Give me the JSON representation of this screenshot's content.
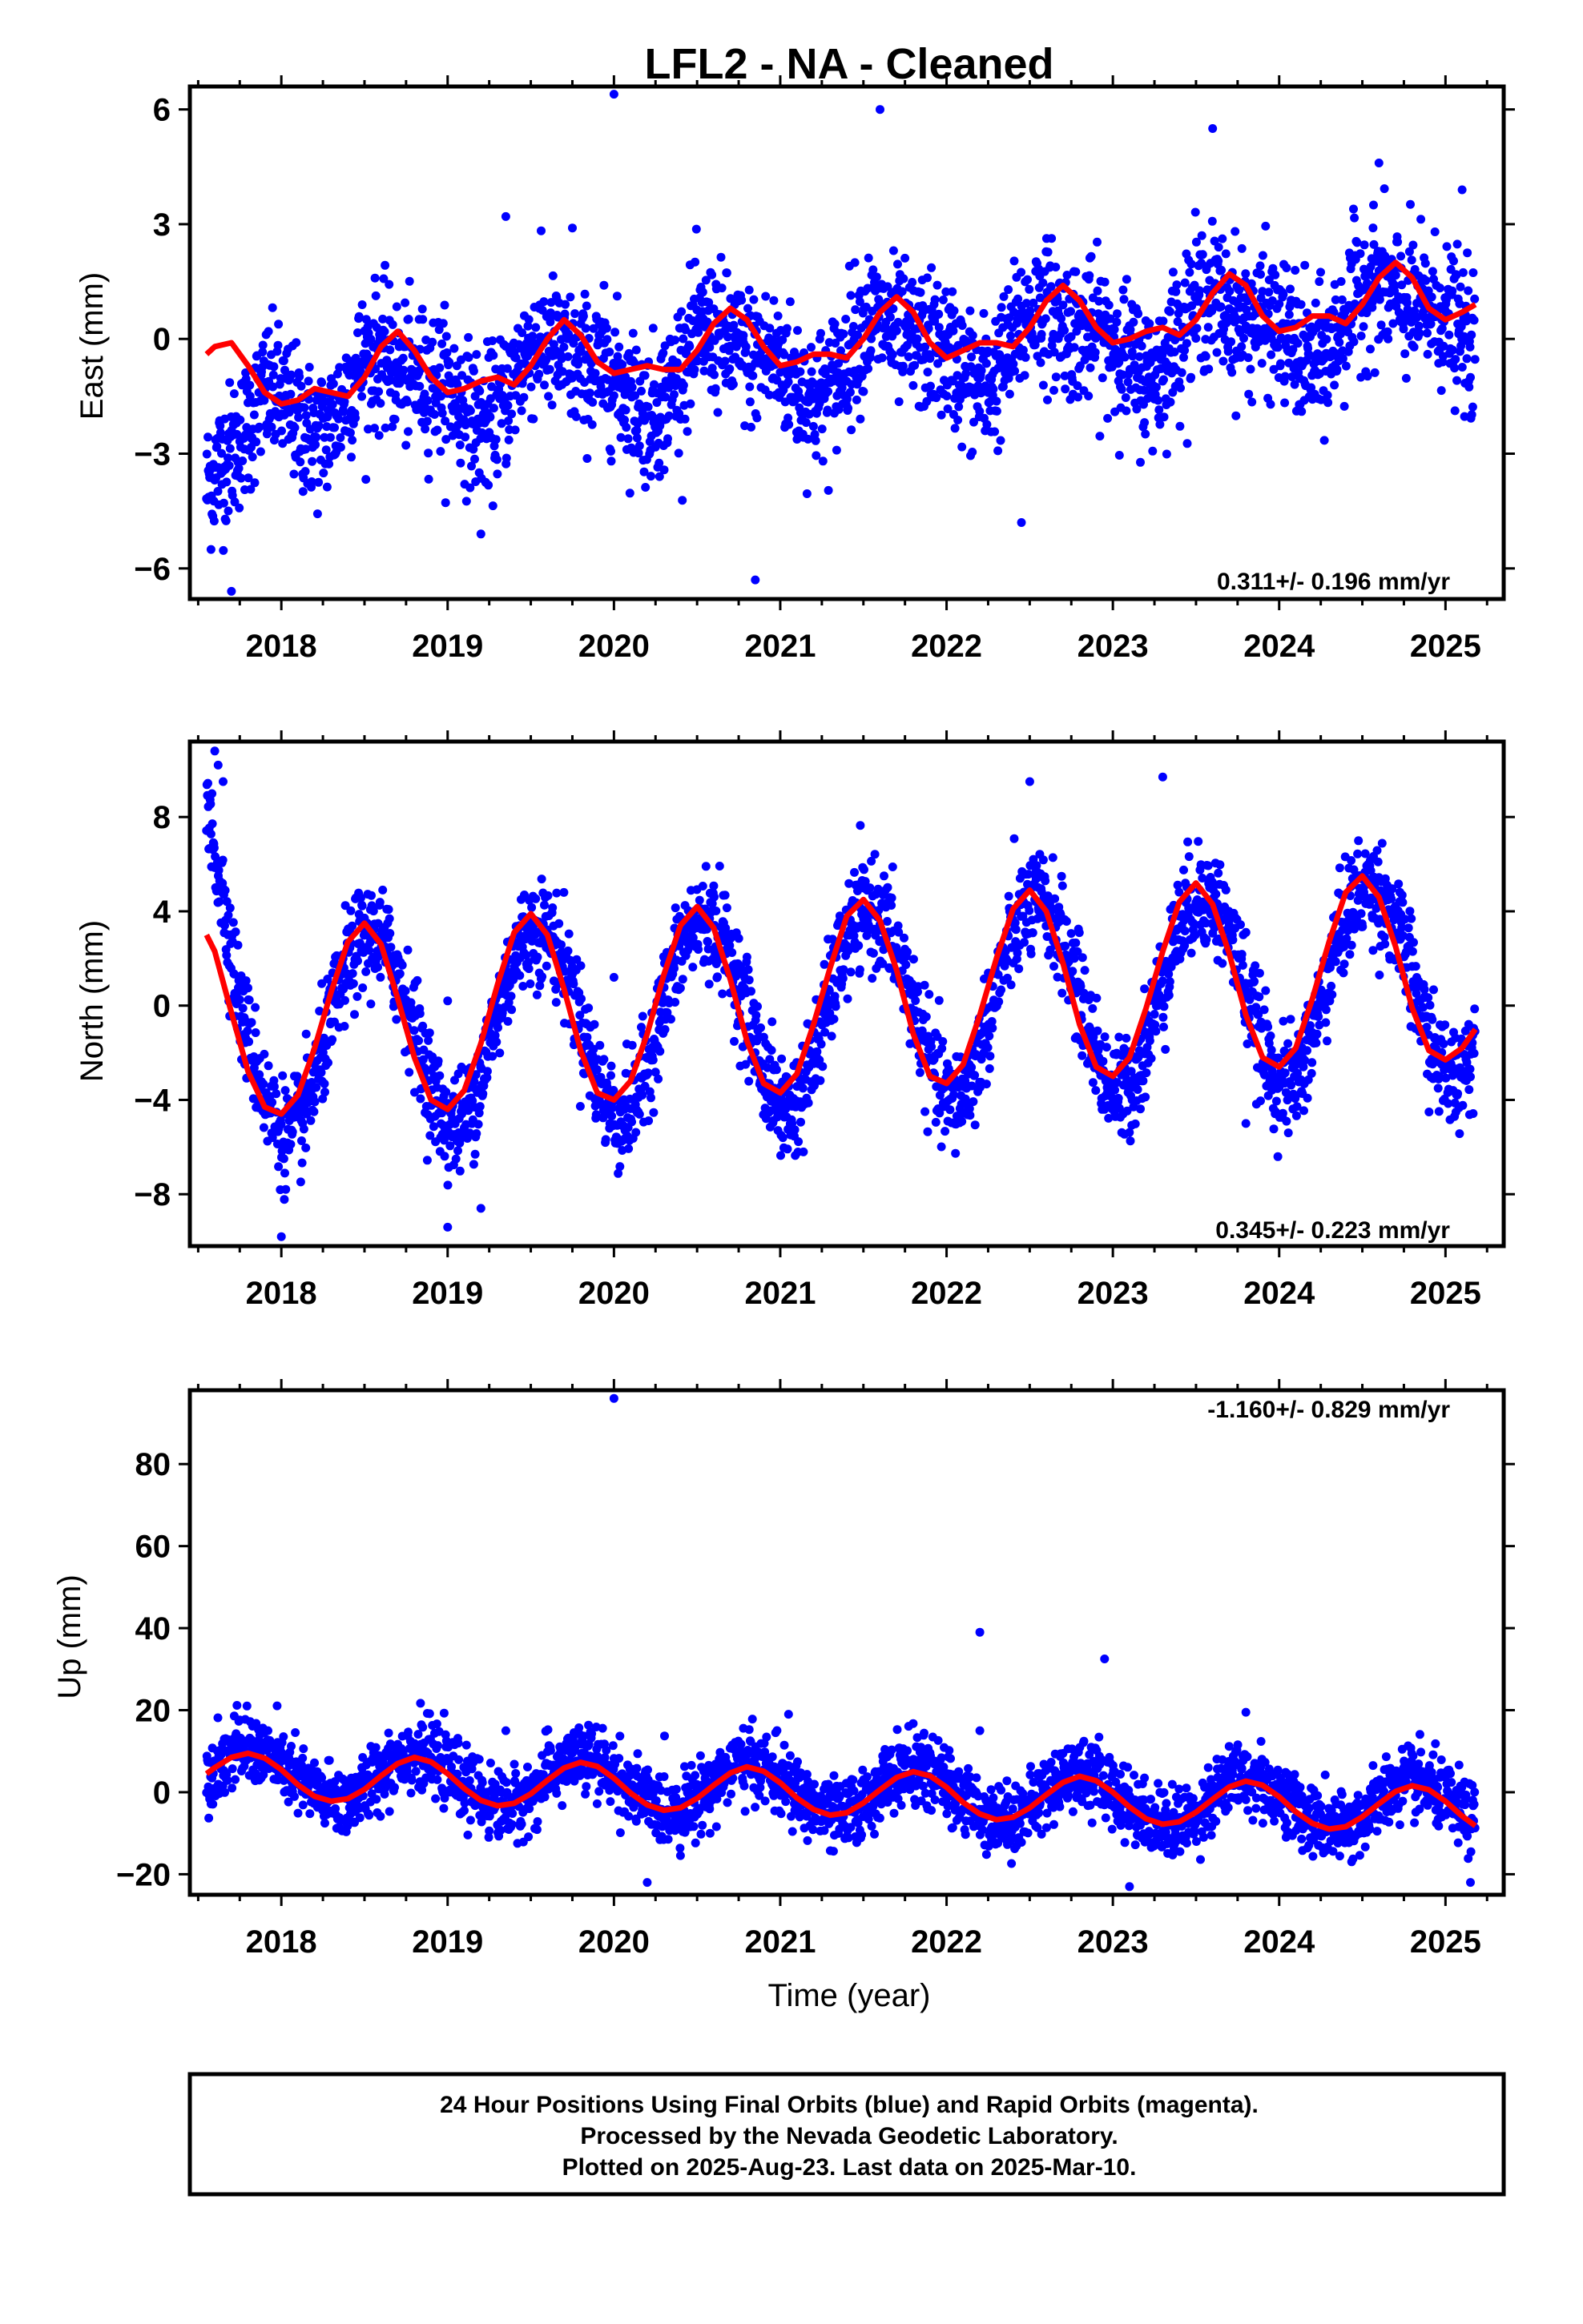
{
  "title": "LFL2  - NA - Cleaned",
  "xlabel": "Time (year)",
  "colors": {
    "points": "#0000ff",
    "fit": "#ff0000",
    "frame": "#000000"
  },
  "chart_data": [
    {
      "type": "scatter",
      "name": "east",
      "ylabel": "East (mm)",
      "rate": "0.311+/- 0.196 mm/yr",
      "xlim": [
        2017.45,
        2025.35
      ],
      "ylim": [
        -6.8,
        6.6
      ],
      "yticks": [
        -6,
        -3,
        0,
        3,
        6
      ],
      "ytick_labels": [
        "−6",
        "−3",
        "0",
        "3",
        "6"
      ],
      "xticks": [
        2018,
        2019,
        2020,
        2021,
        2022,
        2023,
        2024,
        2025
      ],
      "xtick_labels": [
        "2018",
        "2019",
        "2020",
        "2021",
        "2022",
        "2023",
        "2024",
        "2025"
      ],
      "trend": {
        "intercept": -0.45,
        "slope": 0.311,
        "ref": 2021.4
      },
      "annual": {
        "amplitude": 0.8,
        "phase": 0.66
      },
      "semiannual": {
        "amplitude": 0.35,
        "phase": 0.5
      },
      "noise": 0.9,
      "fit_x": [
        2017.55,
        2017.6,
        2017.7,
        2017.8,
        2017.9,
        2018.0,
        2018.1,
        2018.2,
        2018.3,
        2018.4,
        2018.5,
        2018.6,
        2018.7,
        2018.8,
        2018.9,
        2019.0,
        2019.1,
        2019.2,
        2019.3,
        2019.4,
        2019.5,
        2019.6,
        2019.7,
        2019.8,
        2019.9,
        2020.0,
        2020.1,
        2020.2,
        2020.3,
        2020.4,
        2020.5,
        2020.6,
        2020.7,
        2020.8,
        2020.9,
        2021.0,
        2021.1,
        2021.2,
        2021.3,
        2021.4,
        2021.5,
        2021.6,
        2021.7,
        2021.8,
        2021.9,
        2022.0,
        2022.1,
        2022.2,
        2022.3,
        2022.4,
        2022.5,
        2022.6,
        2022.7,
        2022.8,
        2022.9,
        2023.0,
        2023.1,
        2023.2,
        2023.3,
        2023.4,
        2023.5,
        2023.6,
        2023.7,
        2023.8,
        2023.9,
        2024.0,
        2024.1,
        2024.2,
        2024.3,
        2024.4,
        2024.5,
        2024.6,
        2024.7,
        2024.8,
        2024.9,
        2025.0,
        2025.1,
        2025.18
      ],
      "fit_y": [
        -0.4,
        -0.2,
        -0.1,
        -0.7,
        -1.4,
        -1.7,
        -1.6,
        -1.3,
        -1.4,
        -1.5,
        -1.0,
        -0.2,
        0.2,
        -0.3,
        -1.0,
        -1.4,
        -1.3,
        -1.1,
        -1.0,
        -1.2,
        -0.7,
        0.0,
        0.5,
        0.1,
        -0.6,
        -0.9,
        -0.8,
        -0.7,
        -0.8,
        -0.8,
        -0.3,
        0.4,
        0.8,
        0.5,
        -0.2,
        -0.7,
        -0.6,
        -0.4,
        -0.4,
        -0.5,
        0.0,
        0.7,
        1.1,
        0.7,
        -0.1,
        -0.5,
        -0.3,
        -0.1,
        -0.1,
        -0.2,
        0.3,
        1.0,
        1.4,
        1.0,
        0.3,
        -0.1,
        -0.0,
        0.2,
        0.3,
        0.1,
        0.5,
        1.2,
        1.7,
        1.4,
        0.6,
        0.2,
        0.3,
        0.6,
        0.6,
        0.4,
        0.9,
        1.6,
        2.0,
        1.6,
        0.8,
        0.5,
        0.7,
        0.9
      ],
      "outliers": [
        [
          2020.0,
          6.4
        ],
        [
          2021.6,
          6.0
        ],
        [
          2020.85,
          -6.3
        ],
        [
          2017.7,
          -6.6
        ],
        [
          2023.6,
          5.5
        ],
        [
          2024.6,
          4.6
        ],
        [
          2025.1,
          3.9
        ],
        [
          2019.35,
          3.2
        ],
        [
          2019.75,
          2.9
        ],
        [
          2022.45,
          -4.8
        ],
        [
          2019.2,
          -5.1
        ]
      ]
    },
    {
      "type": "scatter",
      "name": "north",
      "ylabel": "North (mm)",
      "rate": "0.345+/- 0.223 mm/yr",
      "xlim": [
        2017.45,
        2025.35
      ],
      "ylim": [
        -10.2,
        11.2
      ],
      "yticks": [
        -8,
        -4,
        0,
        4,
        8
      ],
      "ytick_labels": [
        "−8",
        "−4",
        "0",
        "4",
        "8"
      ],
      "xticks": [
        2018,
        2019,
        2020,
        2021,
        2022,
        2023,
        2024,
        2025
      ],
      "xtick_labels": [
        "2018",
        "2019",
        "2020",
        "2021",
        "2022",
        "2023",
        "2024",
        "2025"
      ],
      "trend": {
        "intercept": 0.0,
        "slope": 0.345,
        "ref": 2021.4
      },
      "annual": {
        "amplitude": 4.1,
        "phase": 0.54
      },
      "semiannual": {
        "amplitude": 0.2,
        "phase": 0.3
      },
      "noise": 1.1,
      "fit_x": [
        2017.55,
        2017.6,
        2017.7,
        2017.8,
        2017.9,
        2018.0,
        2018.1,
        2018.2,
        2018.3,
        2018.4,
        2018.5,
        2018.6,
        2018.7,
        2018.8,
        2018.9,
        2019.0,
        2019.1,
        2019.2,
        2019.3,
        2019.4,
        2019.5,
        2019.6,
        2019.7,
        2019.8,
        2019.9,
        2020.0,
        2020.1,
        2020.2,
        2020.3,
        2020.4,
        2020.5,
        2020.6,
        2020.7,
        2020.8,
        2020.9,
        2021.0,
        2021.1,
        2021.2,
        2021.3,
        2021.4,
        2021.5,
        2021.6,
        2021.7,
        2021.8,
        2021.9,
        2022.0,
        2022.1,
        2022.2,
        2022.3,
        2022.4,
        2022.5,
        2022.6,
        2022.7,
        2022.8,
        2022.9,
        2023.0,
        2023.1,
        2023.2,
        2023.3,
        2023.4,
        2023.5,
        2023.6,
        2023.7,
        2023.8,
        2023.9,
        2024.0,
        2024.1,
        2024.2,
        2024.3,
        2024.4,
        2024.5,
        2024.6,
        2024.7,
        2024.8,
        2024.9,
        2025.0,
        2025.1,
        2025.18
      ],
      "fit_y": [
        3.0,
        2.3,
        -0.3,
        -2.8,
        -4.3,
        -4.6,
        -3.8,
        -1.8,
        0.6,
        2.7,
        3.5,
        2.6,
        0.3,
        -2.2,
        -4.0,
        -4.4,
        -3.6,
        -1.6,
        0.9,
        3.1,
        3.9,
        3.0,
        0.7,
        -1.9,
        -3.7,
        -4.0,
        -3.2,
        -1.2,
        1.3,
        3.4,
        4.2,
        3.3,
        1.1,
        -1.5,
        -3.3,
        -3.7,
        -2.9,
        -0.8,
        1.6,
        3.8,
        4.5,
        3.6,
        1.5,
        -1.2,
        -3.0,
        -3.3,
        -2.5,
        -0.4,
        2.0,
        4.1,
        4.9,
        4.0,
        1.8,
        -0.8,
        -2.6,
        -3.0,
        -2.2,
        -0.1,
        2.3,
        4.4,
        5.2,
        4.3,
        2.2,
        -0.4,
        -2.2,
        -2.6,
        -1.8,
        0.3,
        2.7,
        4.8,
        5.5,
        4.6,
        2.5,
        -0.1,
        -1.9,
        -2.3,
        -1.8,
        -1.0
      ],
      "outliers": [
        [
          2017.6,
          10.8
        ],
        [
          2017.62,
          10.2
        ],
        [
          2017.65,
          9.5
        ],
        [
          2018.0,
          -9.8
        ],
        [
          2019.0,
          -9.4
        ],
        [
          2019.2,
          -8.6
        ],
        [
          2023.3,
          9.7
        ],
        [
          2022.5,
          9.5
        ],
        [
          2020.0,
          1.2
        ],
        [
          2019.0,
          0.2
        ],
        [
          2023.8,
          -5.0
        ]
      ]
    },
    {
      "type": "scatter",
      "name": "up",
      "ylabel": "Up (mm)",
      "rate": "-1.160+/- 0.829 mm/yr",
      "xlim": [
        2017.45,
        2025.35
      ],
      "ylim": [
        -25,
        98
      ],
      "yticks": [
        -20,
        0,
        20,
        40,
        60,
        80
      ],
      "ytick_labels": [
        "−20",
        "0",
        "20",
        "40",
        "60",
        "80"
      ],
      "xticks": [
        2018,
        2019,
        2020,
        2021,
        2022,
        2023,
        2024,
        2025
      ],
      "xtick_labels": [
        "2018",
        "2019",
        "2020",
        "2021",
        "2022",
        "2023",
        "2024",
        "2025"
      ],
      "trend": {
        "intercept": 0.3,
        "slope": -1.16,
        "ref": 2021.4
      },
      "annual": {
        "amplitude": 6.0,
        "phase": 0.82
      },
      "semiannual": {
        "amplitude": 0.5,
        "phase": 0.2
      },
      "noise": 4.2,
      "fit_x": [
        2017.55,
        2017.6,
        2017.7,
        2017.8,
        2017.9,
        2018.0,
        2018.1,
        2018.2,
        2018.3,
        2018.4,
        2018.5,
        2018.6,
        2018.7,
        2018.8,
        2018.9,
        2019.0,
        2019.1,
        2019.2,
        2019.3,
        2019.4,
        2019.5,
        2019.6,
        2019.7,
        2019.8,
        2019.9,
        2020.0,
        2020.1,
        2020.2,
        2020.3,
        2020.4,
        2020.5,
        2020.6,
        2020.7,
        2020.8,
        2020.9,
        2021.0,
        2021.1,
        2021.2,
        2021.3,
        2021.4,
        2021.5,
        2021.6,
        2021.7,
        2021.8,
        2021.9,
        2022.0,
        2022.1,
        2022.2,
        2022.3,
        2022.4,
        2022.5,
        2022.6,
        2022.7,
        2022.8,
        2022.9,
        2023.0,
        2023.1,
        2023.2,
        2023.3,
        2023.4,
        2023.5,
        2023.6,
        2023.7,
        2023.8,
        2023.9,
        2024.0,
        2024.1,
        2024.2,
        2024.3,
        2024.4,
        2024.5,
        2024.6,
        2024.7,
        2024.8,
        2024.9,
        2025.0,
        2025.1,
        2025.18
      ],
      "fit_y": [
        4.5,
        6.0,
        8.5,
        9.5,
        8.3,
        5.5,
        1.8,
        -1.0,
        -2.2,
        -1.6,
        0.7,
        4.0,
        7.0,
        8.5,
        7.4,
        4.5,
        0.9,
        -2.0,
        -3.3,
        -2.7,
        -0.4,
        2.9,
        5.9,
        7.3,
        6.3,
        3.4,
        -0.2,
        -3.1,
        -4.4,
        -3.8,
        -1.5,
        1.7,
        4.7,
        6.2,
        5.1,
        2.3,
        -1.4,
        -4.2,
        -5.6,
        -5.0,
        -2.6,
        0.6,
        3.6,
        5.0,
        4.0,
        1.2,
        -2.5,
        -5.3,
        -6.7,
        -6.1,
        -3.8,
        -0.6,
        2.4,
        3.9,
        2.8,
        0.0,
        -3.6,
        -6.5,
        -7.8,
        -7.2,
        -4.9,
        -1.7,
        1.3,
        2.7,
        1.7,
        -1.1,
        -4.8,
        -7.6,
        -9.0,
        -8.4,
        -6.0,
        -2.8,
        0.2,
        1.6,
        0.6,
        -2.2,
        -5.8,
        -8.2
      ],
      "outliers": [
        [
          2020.0,
          96.0
        ],
        [
          2022.2,
          39.0
        ],
        [
          2022.95,
          32.5
        ],
        [
          2021.05,
          19.0
        ],
        [
          2023.8,
          19.5
        ],
        [
          2022.2,
          15.0
        ],
        [
          2019.35,
          15.0
        ],
        [
          2023.1,
          -23.0
        ],
        [
          2025.15,
          -22.0
        ],
        [
          2020.2,
          -22.0
        ]
      ]
    }
  ],
  "footer": {
    "line1": "24 Hour Positions Using Final Orbits (blue) and Rapid Orbits (magenta).",
    "line2": "Processed by the Nevada Geodetic Laboratory.",
    "line3": "Plotted on 2025-Aug-23. Last data on 2025-Mar-10."
  }
}
